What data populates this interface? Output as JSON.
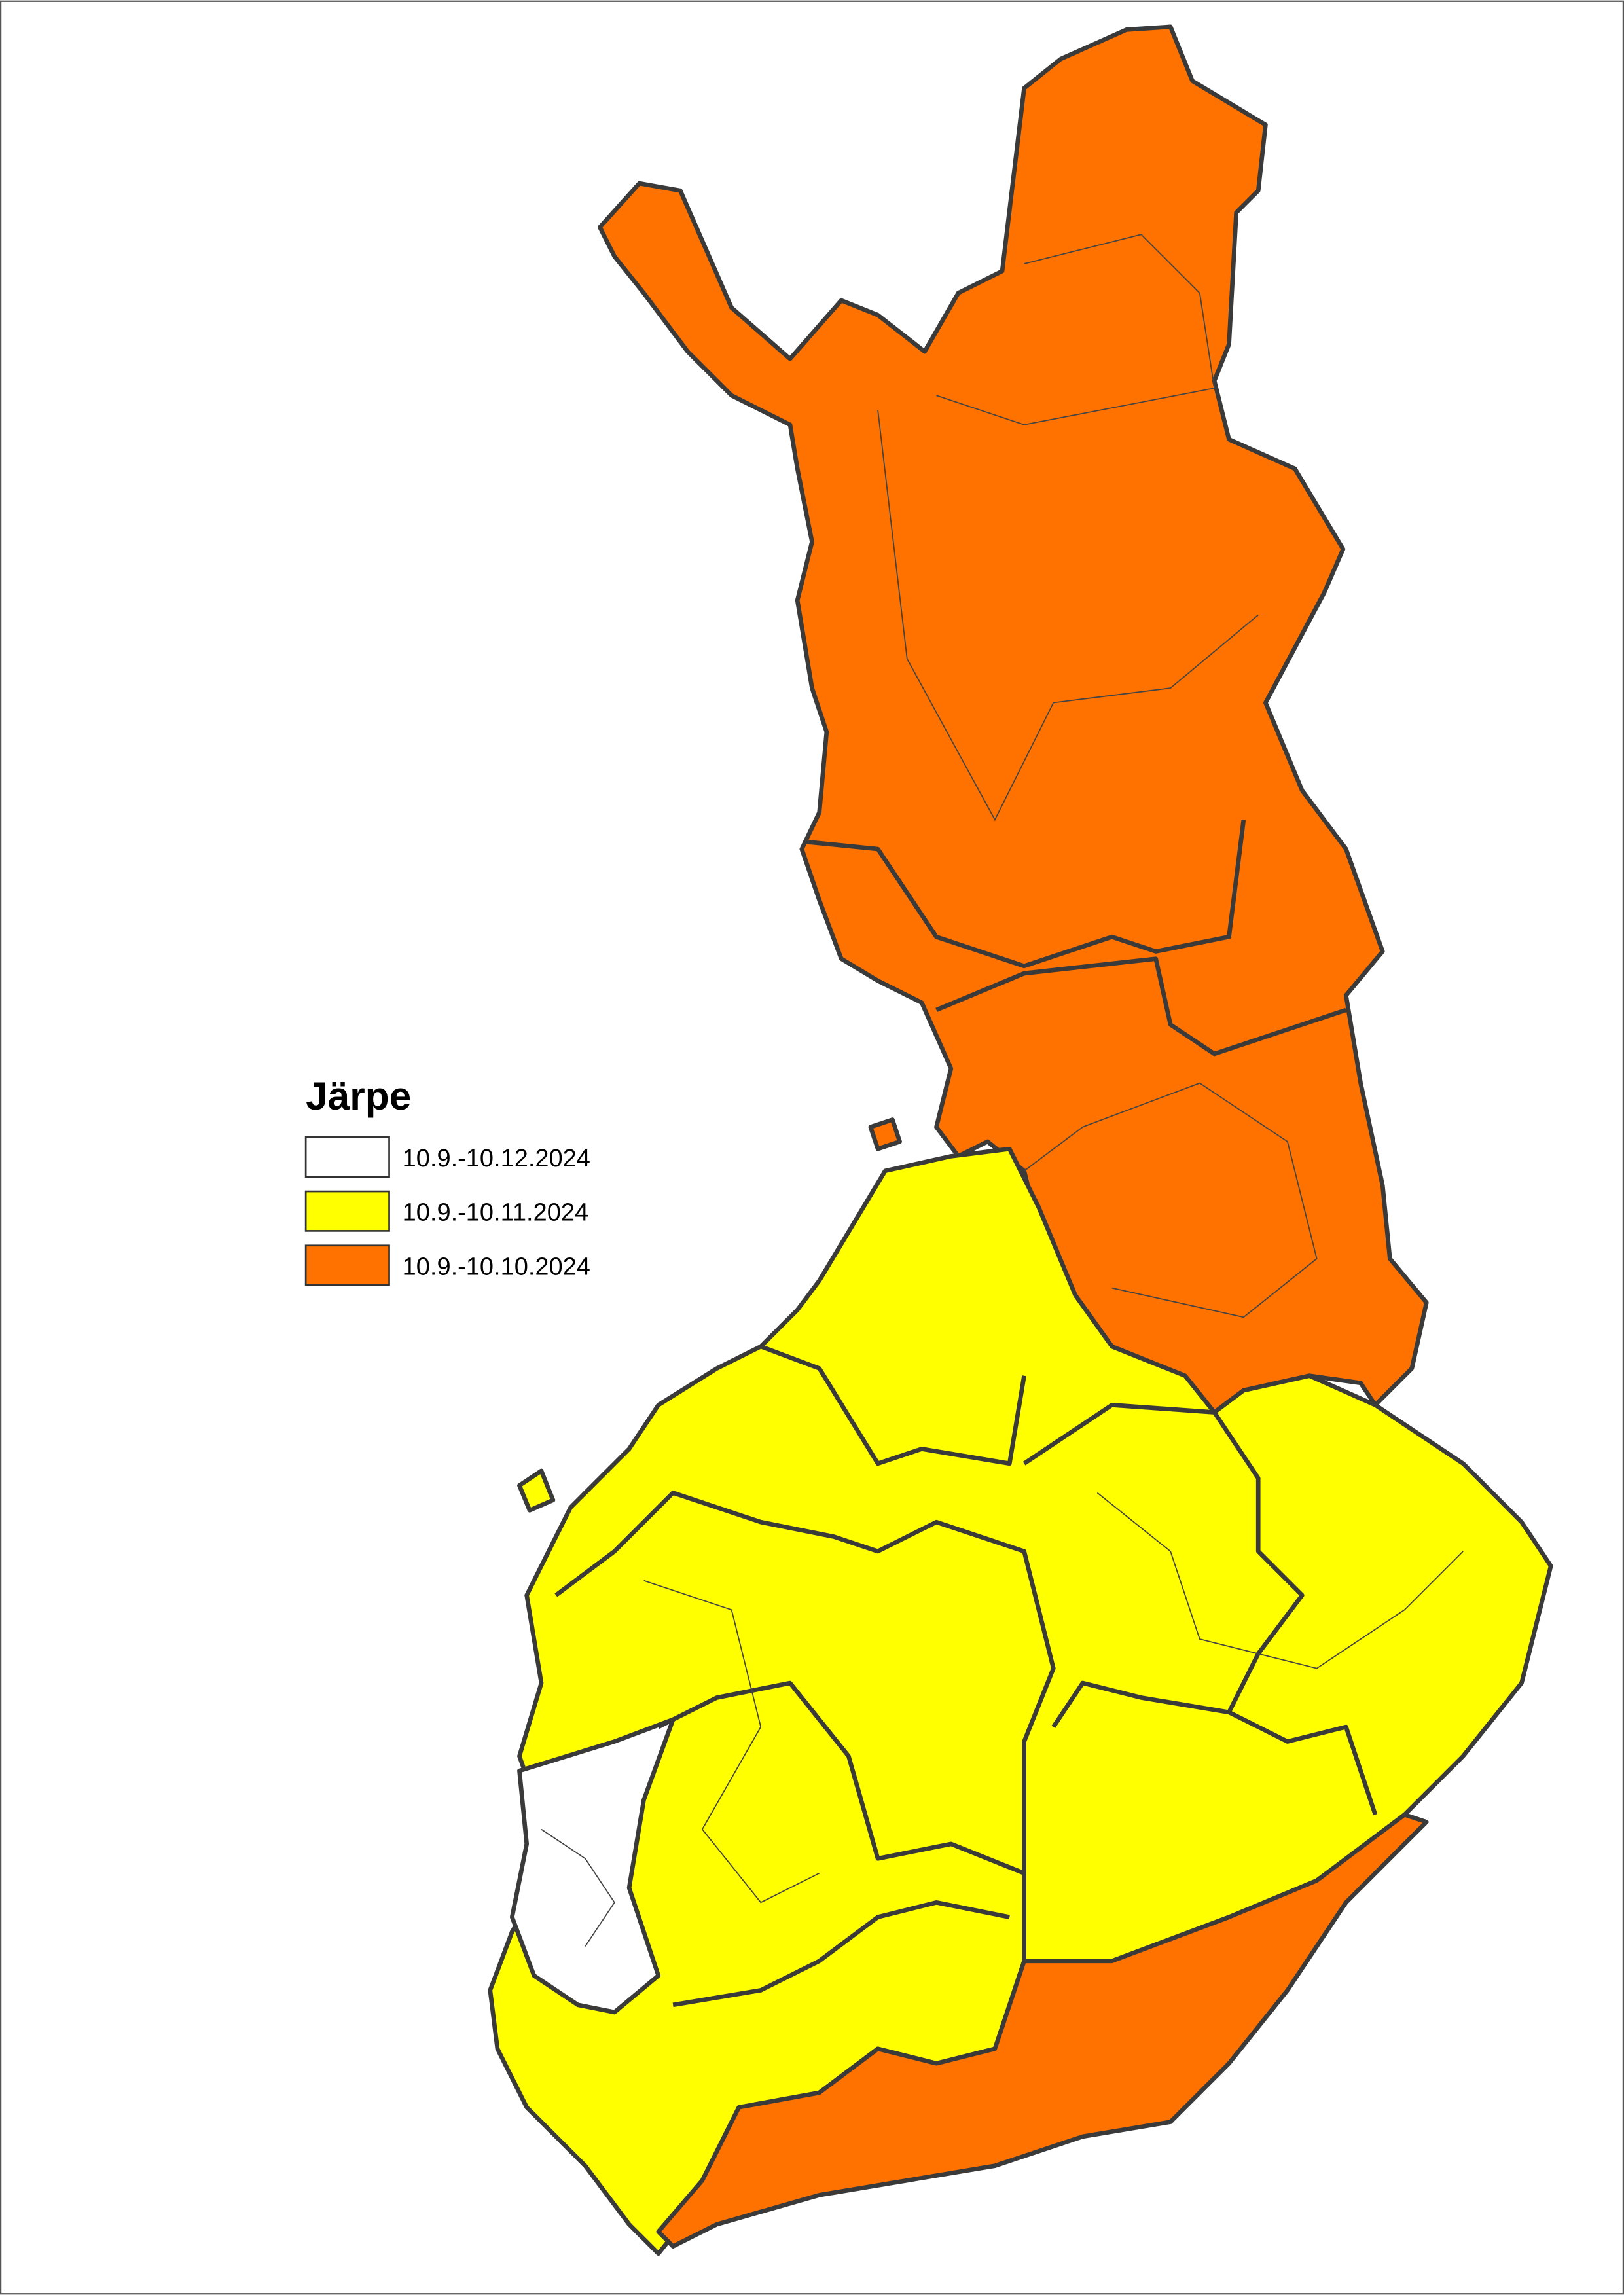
{
  "legend": {
    "title": "Järpe",
    "items": [
      {
        "label": "10.9.-10.12.2024",
        "color": "#ffffff"
      },
      {
        "label": "10.9.-10.11.2024",
        "color": "#ffff00"
      },
      {
        "label": "10.9.-10.10.2024",
        "color": "#ff7200"
      }
    ]
  }
}
